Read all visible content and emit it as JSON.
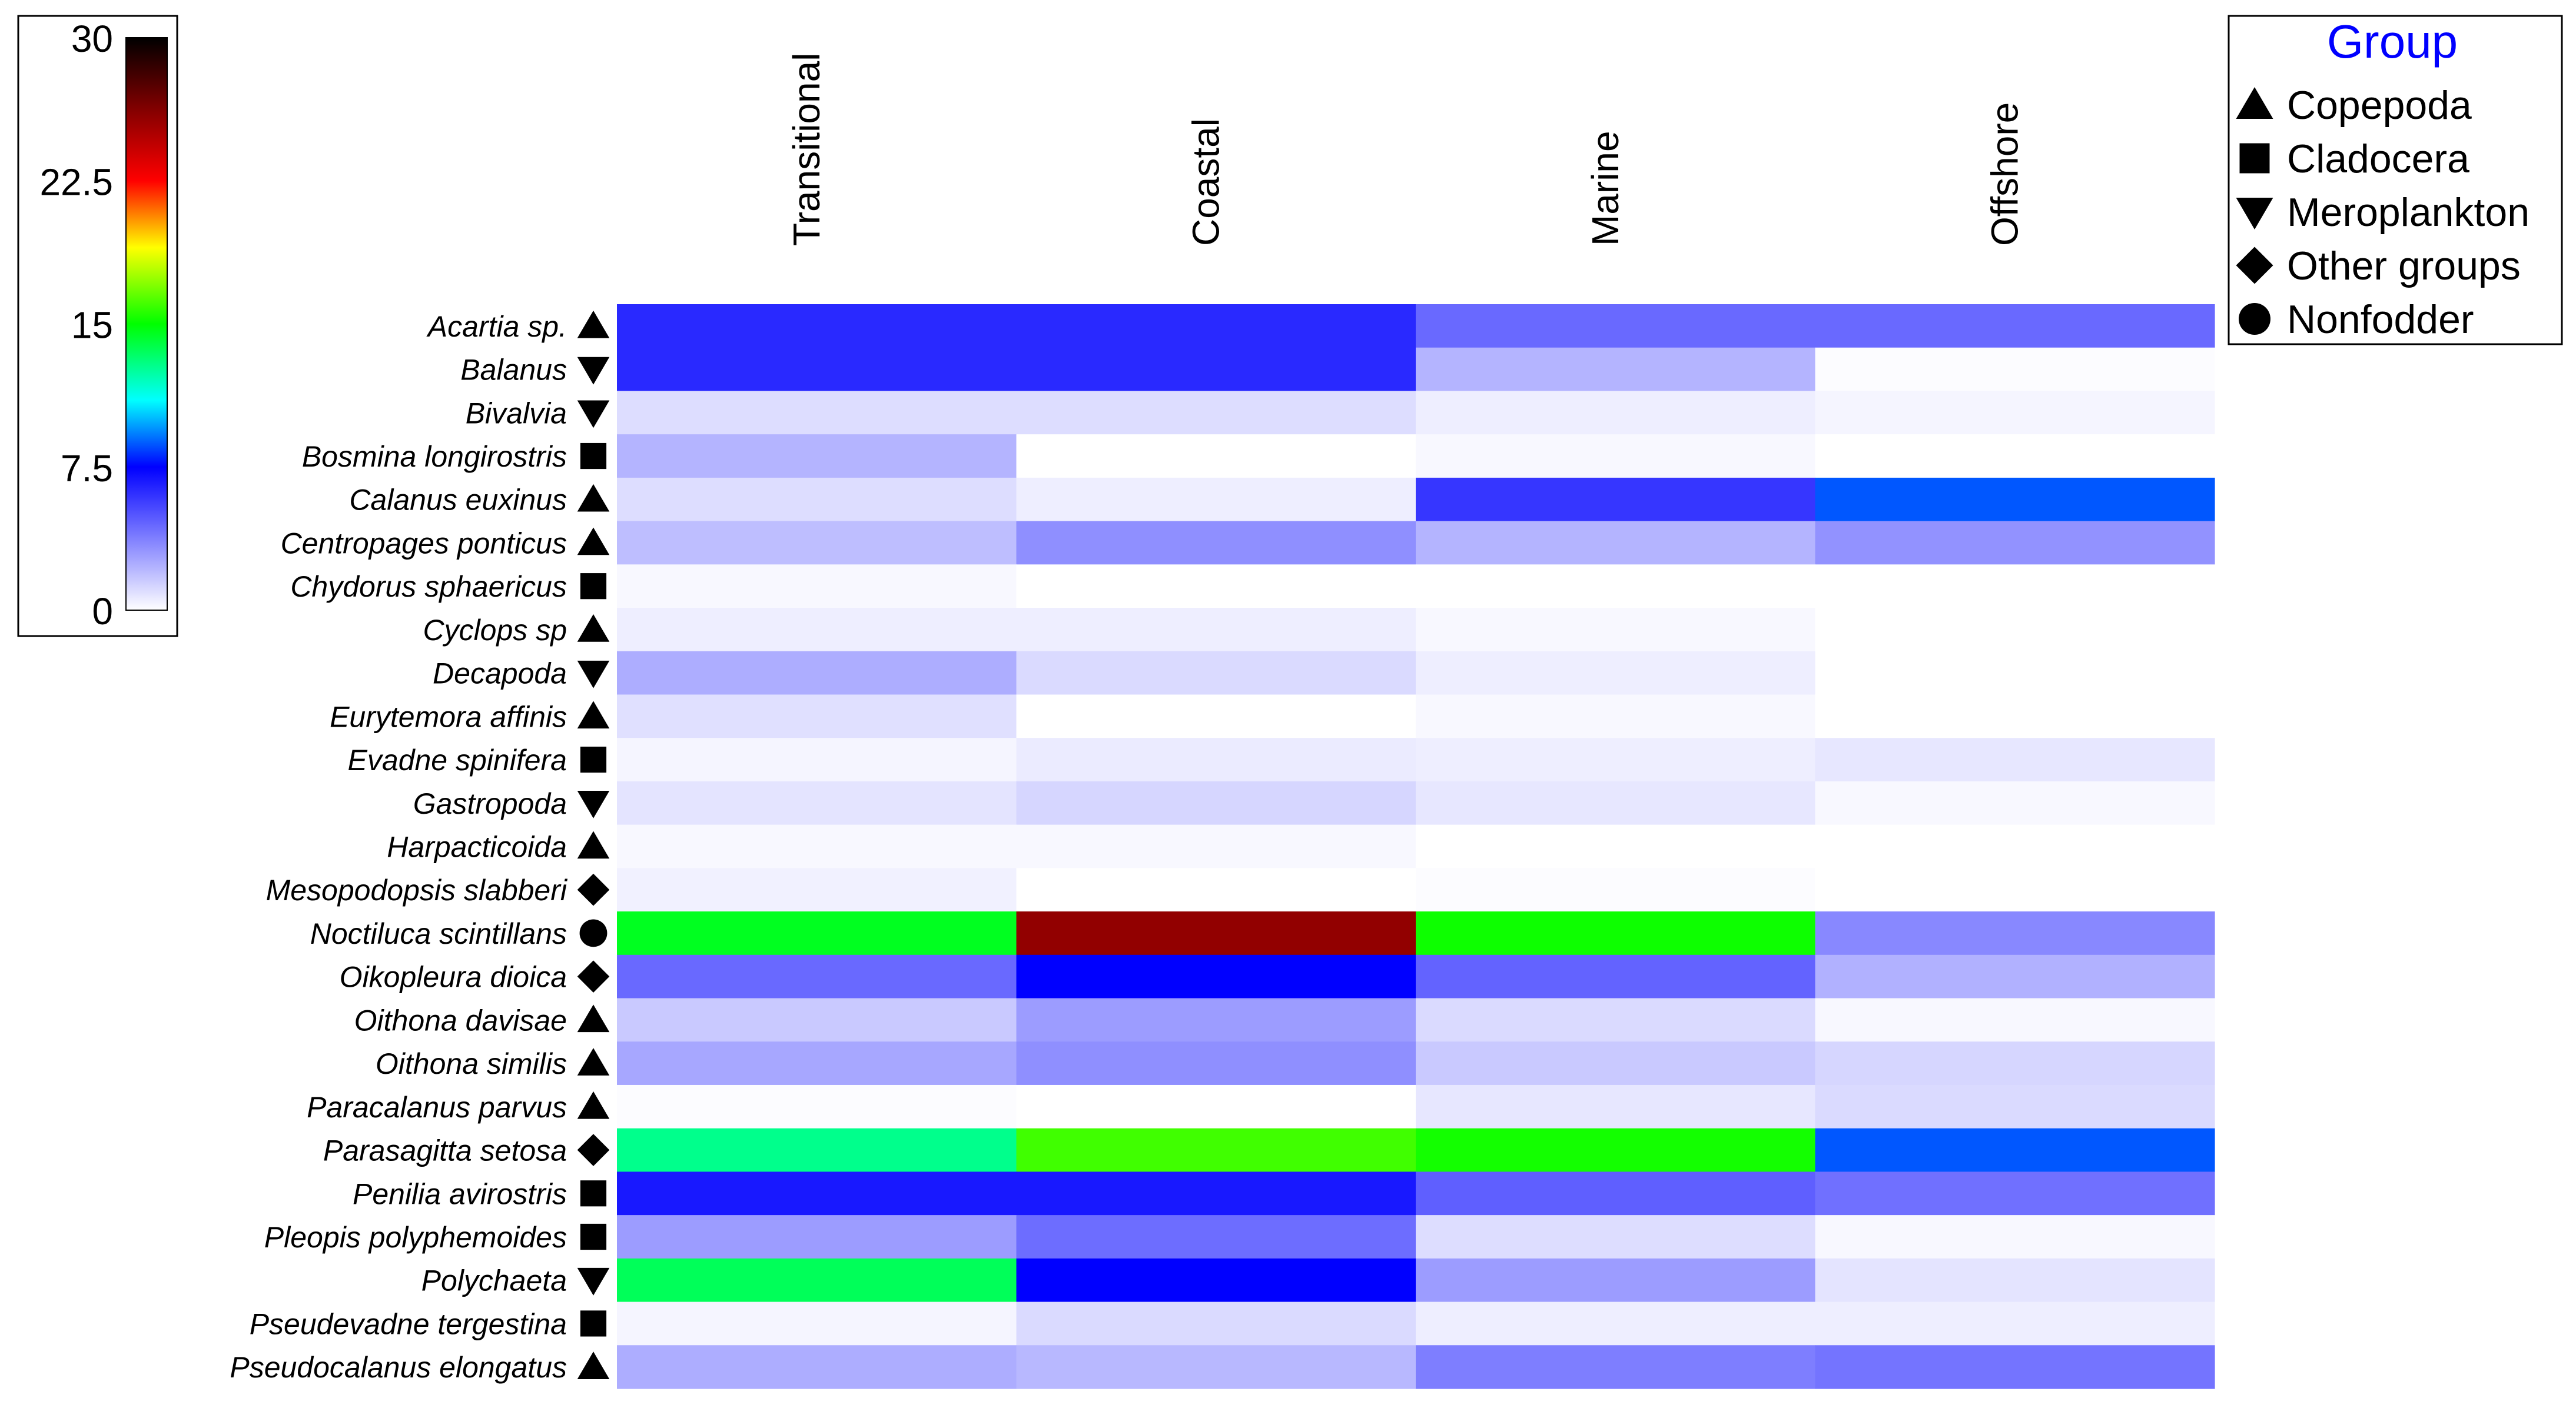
{
  "chart_data": {
    "type": "heatmap",
    "title": "",
    "columns": [
      "Transitional",
      "Coastal",
      "Marine",
      "Offshore"
    ],
    "colorbar": {
      "min": 0,
      "max": 30,
      "ticks": [
        "30",
        "22.5",
        "15",
        "7.5",
        "0"
      ],
      "tick_values": [
        30,
        22.5,
        15,
        7.5,
        0
      ],
      "stops": [
        {
          "v": 0,
          "color": "#ffffff"
        },
        {
          "v": 7.5,
          "color": "#0000ff"
        },
        {
          "v": 11,
          "color": "#00ffff"
        },
        {
          "v": 15,
          "color": "#00ff00"
        },
        {
          "v": 19,
          "color": "#ffff00"
        },
        {
          "v": 22.5,
          "color": "#ff0000"
        },
        {
          "v": 26,
          "color": "#8b0000"
        },
        {
          "v": 30,
          "color": "#000000"
        }
      ]
    },
    "legend": {
      "title": "Group",
      "title_color": "#0000ff",
      "items": [
        {
          "symbol": "triangle-up",
          "label": "Copepoda"
        },
        {
          "symbol": "square",
          "label": "Cladocera"
        },
        {
          "symbol": "triangle-down",
          "label": "Meroplankton"
        },
        {
          "symbol": "diamond",
          "label": "Other groups"
        },
        {
          "symbol": "circle",
          "label": "Nonfodder"
        }
      ]
    },
    "rows": [
      {
        "label": "Acartia sp.",
        "symbol": "triangle-up",
        "values": [
          6.3,
          6.3,
          4.4,
          4.4
        ]
      },
      {
        "label": "Balanus",
        "symbol": "triangle-down",
        "values": [
          6.3,
          6.3,
          2.2,
          0.1
        ]
      },
      {
        "label": "Bivalvia",
        "symbol": "triangle-down",
        "values": [
          1.0,
          1.0,
          0.5,
          0.3
        ]
      },
      {
        "label": "Bosmina longirostris",
        "symbol": "square",
        "values": [
          2.2,
          0.0,
          0.2,
          0.0
        ]
      },
      {
        "label": "Calanus euxinus",
        "symbol": "triangle-up",
        "values": [
          1.0,
          0.5,
          5.9,
          8.7
        ]
      },
      {
        "label": "Centropages ponticus",
        "symbol": "triangle-up",
        "values": [
          1.9,
          3.3,
          2.2,
          3.2
        ]
      },
      {
        "label": "Chydorus sphaericus",
        "symbol": "square",
        "values": [
          0.2,
          0.0,
          0.0,
          0.0
        ]
      },
      {
        "label": "Cyclops sp",
        "symbol": "triangle-up",
        "values": [
          0.5,
          0.5,
          0.2,
          0.0
        ]
      },
      {
        "label": "Decapoda",
        "symbol": "triangle-down",
        "values": [
          2.4,
          1.1,
          0.5,
          0.0
        ]
      },
      {
        "label": "Eurytemora affinis",
        "symbol": "triangle-up",
        "values": [
          0.9,
          0.0,
          0.2,
          0.0
        ]
      },
      {
        "label": "Evadne spinifera",
        "symbol": "square",
        "values": [
          0.3,
          0.6,
          0.5,
          0.7
        ]
      },
      {
        "label": "Gastropoda",
        "symbol": "triangle-down",
        "values": [
          0.8,
          1.2,
          0.7,
          0.2
        ]
      },
      {
        "label": "Harpacticoida",
        "symbol": "triangle-up",
        "values": [
          0.2,
          0.2,
          0.0,
          0.0
        ]
      },
      {
        "label": "Mesopodopsis slabberi",
        "symbol": "diamond",
        "values": [
          0.4,
          0.0,
          0.1,
          0.0
        ]
      },
      {
        "label": "Noctiluca scintillans",
        "symbol": "circle",
        "values": [
          14.5,
          25.8,
          15.2,
          3.5
        ]
      },
      {
        "label": "Oikopleura dioica",
        "symbol": "diamond",
        "values": [
          4.4,
          7.5,
          4.6,
          2.3
        ]
      },
      {
        "label": "Oithona davisae",
        "symbol": "triangle-up",
        "values": [
          1.6,
          2.9,
          1.1,
          0.2
        ]
      },
      {
        "label": "Oithona similis",
        "symbol": "triangle-up",
        "values": [
          2.6,
          3.3,
          1.6,
          1.2
        ]
      },
      {
        "label": "Paracalanus parvus",
        "symbol": "triangle-up",
        "values": [
          0.1,
          0.0,
          0.7,
          1.1
        ]
      },
      {
        "label": "Parasagitta setosa",
        "symbol": "diamond",
        "values": [
          12.8,
          16.0,
          15.3,
          8.7
        ]
      },
      {
        "label": "Penilia avirostris",
        "symbol": "square",
        "values": [
          6.8,
          6.8,
          4.7,
          4.2
        ]
      },
      {
        "label": "Pleopis polyphemoides",
        "symbol": "square",
        "values": [
          2.9,
          4.3,
          1.0,
          0.2
        ]
      },
      {
        "label": "Polychaeta",
        "symbol": "triangle-down",
        "values": [
          13.6,
          7.5,
          2.9,
          0.8
        ]
      },
      {
        "label": "Pseudevadne tergestina",
        "symbol": "square",
        "values": [
          0.3,
          1.1,
          0.5,
          0.5
        ]
      },
      {
        "label": "Pseudocalanus elongatus",
        "symbol": "triangle-up",
        "values": [
          2.4,
          2.1,
          3.8,
          4.1
        ]
      }
    ]
  }
}
